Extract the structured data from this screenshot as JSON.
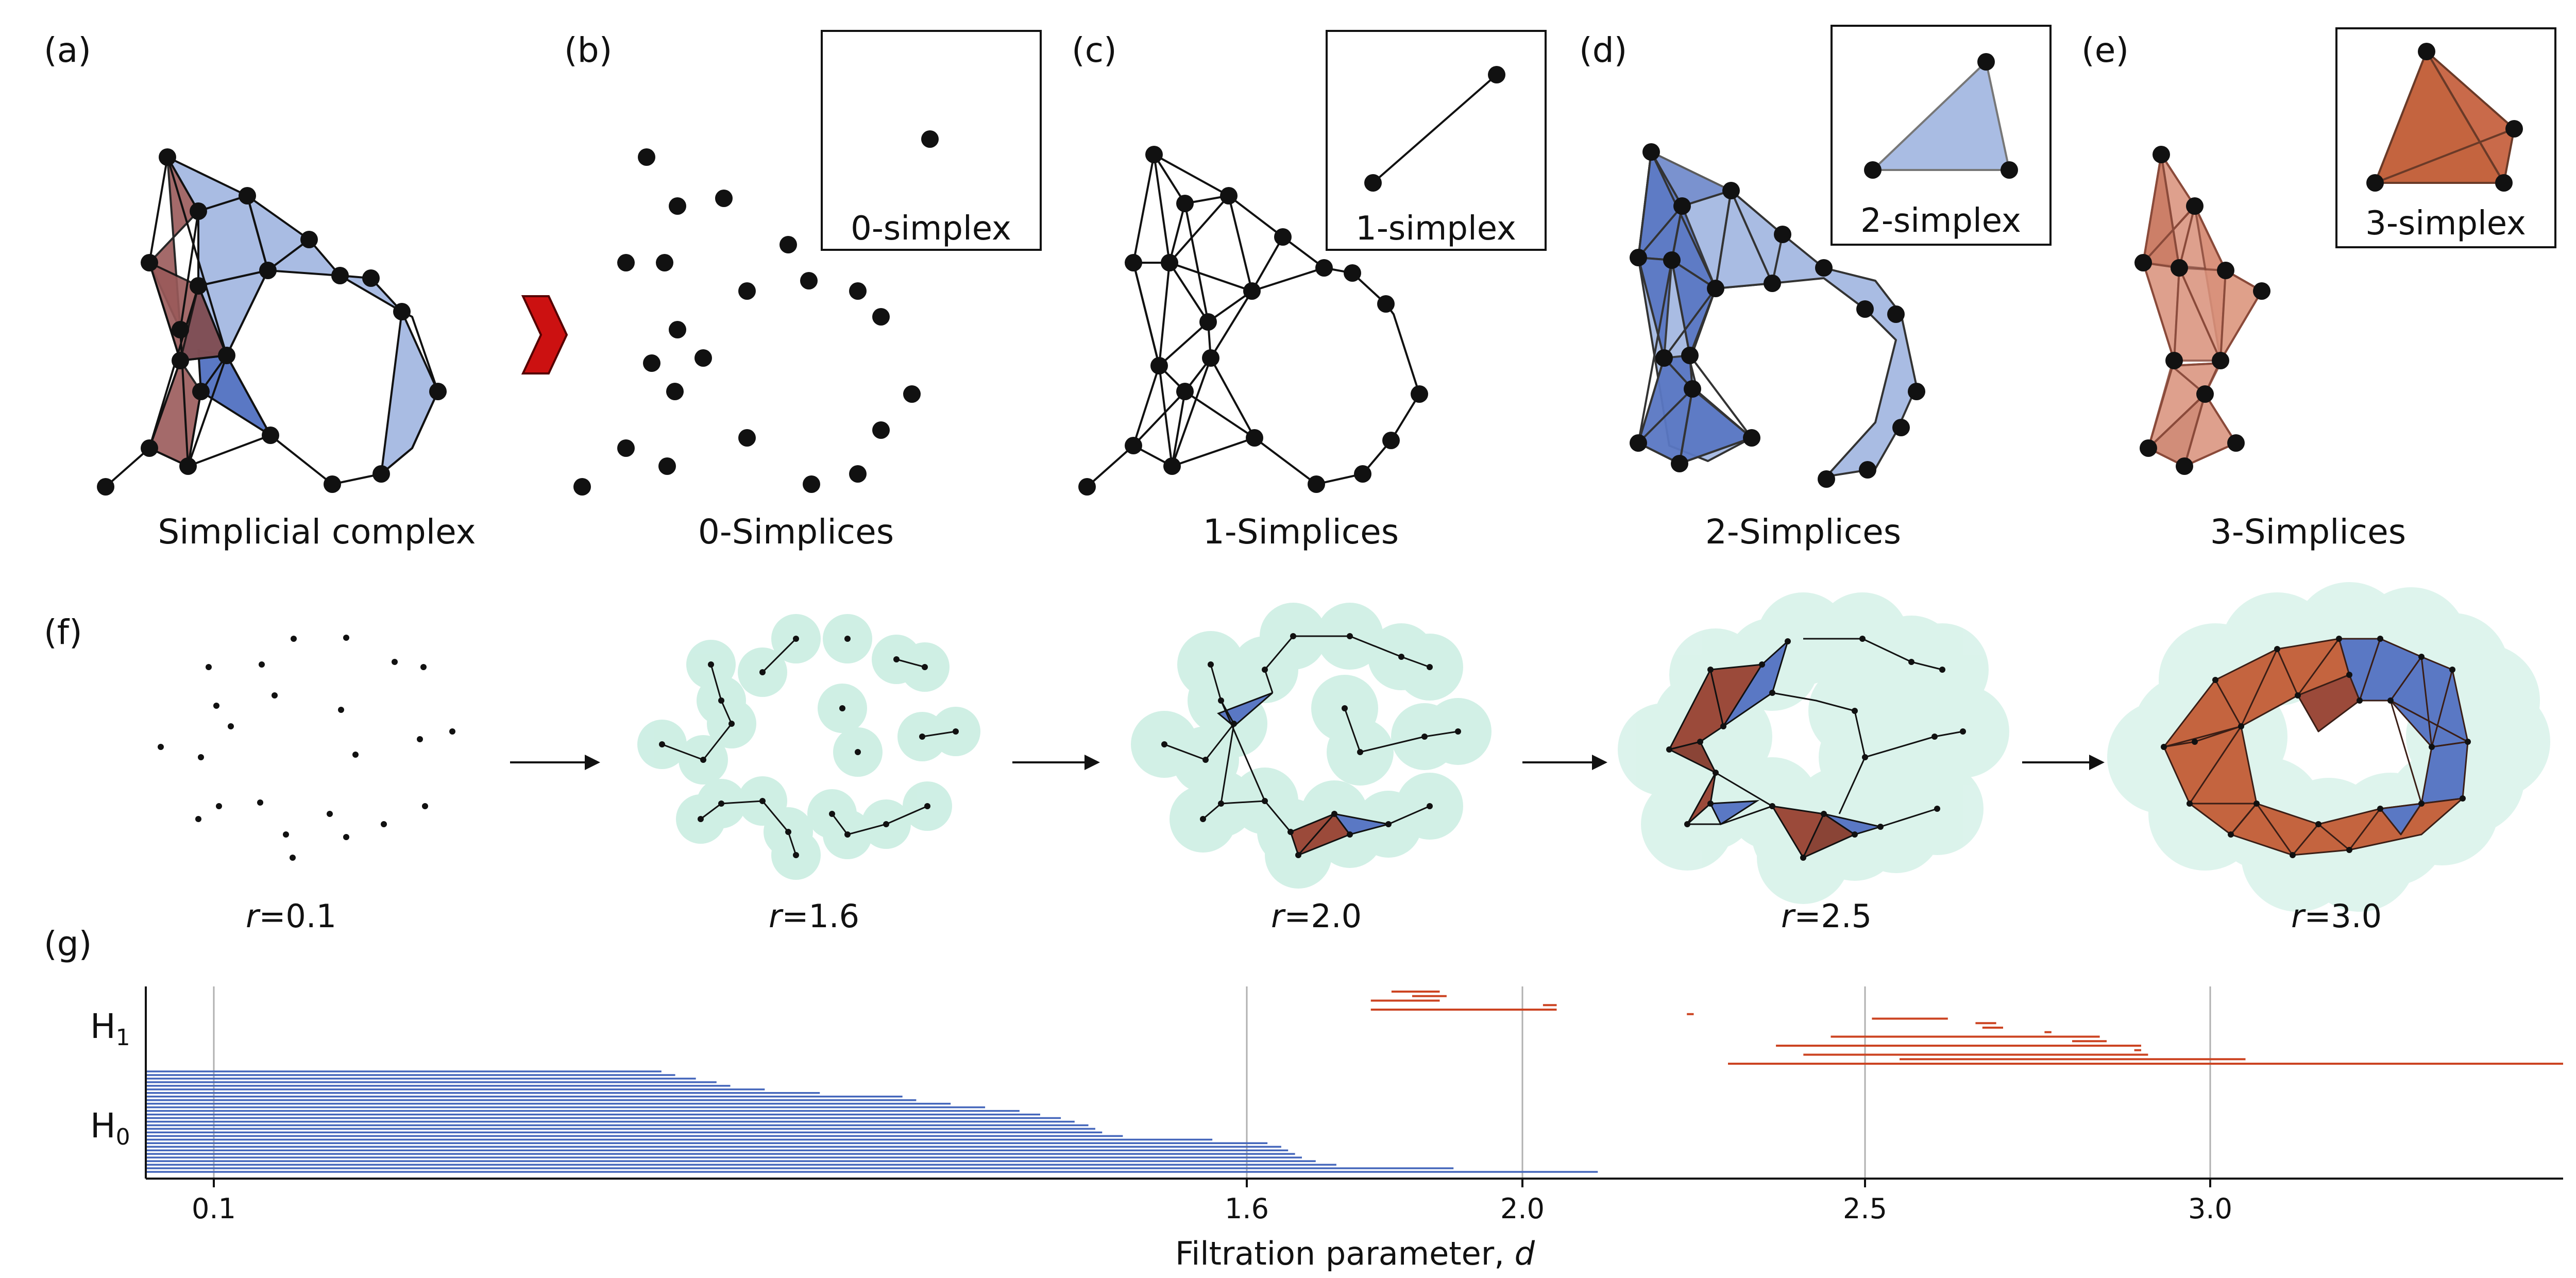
{
  "panels": {
    "a": {
      "label": "(a)",
      "caption": "Simplicial complex"
    },
    "b": {
      "label": "(b)",
      "caption": "0-Simplices",
      "inset": "0-simplex"
    },
    "c": {
      "label": "(c)",
      "caption": "1-Simplices",
      "inset": "1-simplex"
    },
    "d": {
      "label": "(d)",
      "caption": "2-Simplices",
      "inset": "2-simplex"
    },
    "e": {
      "label": "(e)",
      "caption": "3-Simplices",
      "inset": "3-simplex"
    },
    "f": {
      "label": "(f)",
      "radii": [
        "0.1",
        "1.6",
        "2.0",
        "2.5",
        "3.0"
      ],
      "radius_symbol": "r",
      "equals": "="
    },
    "g": {
      "label": "(g)"
    }
  },
  "colors": {
    "blue_fill": "#a9bce3",
    "blue_dark": "#5a78c4",
    "red_fill": "#9b5a5a",
    "orange": "#c45a32",
    "salmon": "#d9907a",
    "teal": "#bfeadc",
    "arrow_red": "#cc1111",
    "h0_bar": "#4466bb",
    "h1_bar": "#cc4422"
  },
  "chart_data": {
    "type": "barcode",
    "title": "",
    "xlabel": "Filtration parameter,",
    "xlabel_var": "d",
    "x_ticks": [
      "0.1",
      "1.6",
      "2.0",
      "2.5",
      "3.0"
    ],
    "xlim": [
      0.0,
      3.5
    ],
    "y_labels": [
      {
        "base": "H",
        "sub": "1"
      },
      {
        "base": "H",
        "sub": "0"
      }
    ],
    "H0": [
      {
        "birth": 0,
        "death": 2.11
      },
      {
        "birth": 0,
        "death": 1.9
      },
      {
        "birth": 0,
        "death": 1.73
      },
      {
        "birth": 0,
        "death": 1.7
      },
      {
        "birth": 0,
        "death": 1.68
      },
      {
        "birth": 0,
        "death": 1.67
      },
      {
        "birth": 0,
        "death": 1.66
      },
      {
        "birth": 0,
        "death": 1.65
      },
      {
        "birth": 0,
        "death": 1.63
      },
      {
        "birth": 0,
        "death": 1.55
      },
      {
        "birth": 0,
        "death": 1.42
      },
      {
        "birth": 0,
        "death": 1.39
      },
      {
        "birth": 0,
        "death": 1.38
      },
      {
        "birth": 0,
        "death": 1.37
      },
      {
        "birth": 0,
        "death": 1.35
      },
      {
        "birth": 0,
        "death": 1.33
      },
      {
        "birth": 0,
        "death": 1.3
      },
      {
        "birth": 0,
        "death": 1.27
      },
      {
        "birth": 0,
        "death": 1.22
      },
      {
        "birth": 0,
        "death": 1.17
      },
      {
        "birth": 0,
        "death": 1.12
      },
      {
        "birth": 0,
        "death": 1.1
      },
      {
        "birth": 0,
        "death": 0.98
      },
      {
        "birth": 0,
        "death": 0.9
      },
      {
        "birth": 0,
        "death": 0.85
      },
      {
        "birth": 0,
        "death": 0.83
      },
      {
        "birth": 0,
        "death": 0.8
      },
      {
        "birth": 0,
        "death": 0.77
      },
      {
        "birth": 0,
        "death": 0.75
      }
    ],
    "H1": [
      {
        "birth": 1.81,
        "death": 1.88
      },
      {
        "birth": 1.84,
        "death": 1.89
      },
      {
        "birth": 1.78,
        "death": 1.88
      },
      {
        "birth": 2.03,
        "death": 2.05
      },
      {
        "birth": 1.78,
        "death": 2.05
      },
      {
        "birth": 2.24,
        "death": 2.25
      },
      {
        "birth": 2.51,
        "death": 2.62
      },
      {
        "birth": 2.66,
        "death": 2.69
      },
      {
        "birth": 2.67,
        "death": 2.7
      },
      {
        "birth": 2.76,
        "death": 2.77
      },
      {
        "birth": 2.45,
        "death": 2.84
      },
      {
        "birth": 2.8,
        "death": 2.85
      },
      {
        "birth": 2.37,
        "death": 2.9
      },
      {
        "birth": 2.89,
        "death": 2.9
      },
      {
        "birth": 2.41,
        "death": 2.91
      },
      {
        "birth": 2.55,
        "death": 3.05
      },
      {
        "birth": 2.3,
        "death": 3.5
      }
    ]
  }
}
